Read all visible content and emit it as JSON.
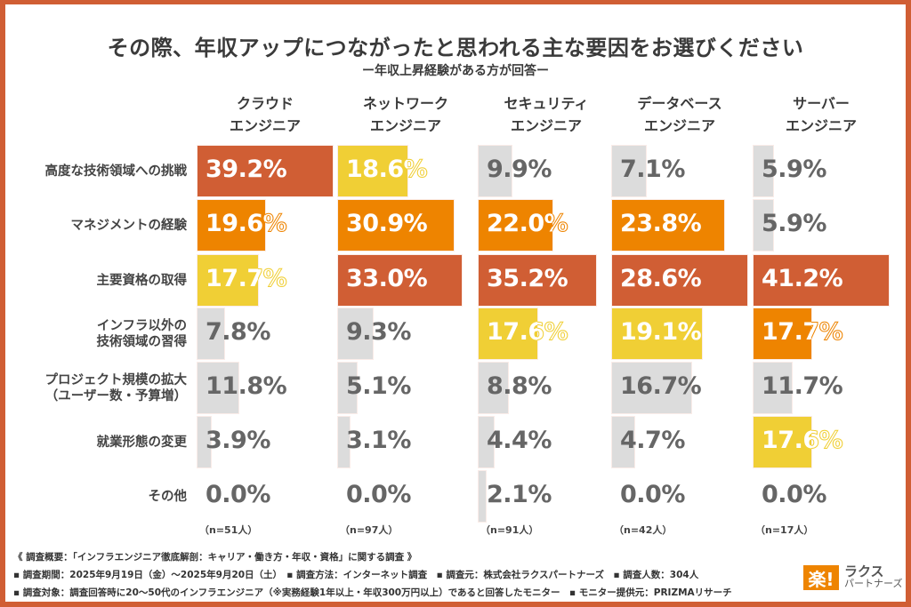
{
  "title": "その際、年収アップにつながったと思われる主な要因をお選びください",
  "subtitle": "ー年収上昇経験がある方が回答ー",
  "colors": {
    "top": "#D05E34",
    "second": "#EE8400",
    "third": "#F0CF35",
    "other": "#DCDCDC",
    "border": "#D05E34",
    "text_dark": "#666666"
  },
  "chart_data": {
    "type": "bar",
    "orientation": "horizontal-small-multiples",
    "title": "その際、年収アップにつながったと思われる主な要因をお選びください",
    "subtitle": "ー年収上昇経験がある方が回答ー",
    "unit": "%",
    "categories": [
      "高度な技術領域への挑戦",
      "マネジメントの経験",
      "主要資格の取得",
      "インフラ以外の\n技術領域の習得",
      "プロジェクト規模の拡大\n（ユーザー数・予算増）",
      "就業形態の変更",
      "その他"
    ],
    "series": [
      {
        "name": "クラウド\nエンジニア",
        "n": "（n=51人）",
        "values": [
          39.2,
          19.6,
          17.7,
          7.8,
          11.8,
          3.9,
          0.0
        ],
        "ranks": [
          1,
          2,
          3,
          0,
          0,
          0,
          0
        ]
      },
      {
        "name": "ネットワーク\nエンジニア",
        "n": "（n=97人）",
        "values": [
          18.6,
          30.9,
          33.0,
          9.3,
          5.1,
          3.1,
          0.0
        ],
        "ranks": [
          3,
          2,
          1,
          0,
          0,
          0,
          0
        ]
      },
      {
        "name": "セキュリティ\nエンジニア",
        "n": "（n=91人）",
        "values": [
          9.9,
          22.0,
          35.2,
          17.6,
          8.8,
          4.4,
          2.1
        ],
        "ranks": [
          0,
          2,
          1,
          3,
          0,
          0,
          0
        ]
      },
      {
        "name": "データベース\nエンジニア",
        "n": "（n=42人）",
        "values": [
          7.1,
          23.8,
          28.6,
          19.1,
          16.7,
          4.7,
          0.0
        ],
        "ranks": [
          0,
          2,
          1,
          3,
          0,
          0,
          0
        ]
      },
      {
        "name": "サーバー\nエンジニア",
        "n": "（n=17人）",
        "values": [
          5.9,
          5.9,
          41.2,
          17.7,
          11.7,
          17.6,
          0.0
        ],
        "ranks": [
          0,
          0,
          1,
          2,
          0,
          3,
          0
        ]
      }
    ],
    "legend": "none",
    "grid": false
  },
  "notes": [
    "《 調査概要：「インフラエンジニア徹底解剖：キャリア・働き方・年収・資格」に関する調査 》",
    "▪ 調査期間：2025年9月19日（金）～2025年9月20日（土）　▪ 調査方法：インターネット調査　▪ 調査元：株式会社ラクスパートナーズ　▪ 調査人数：304人",
    "▪ 調査対象：調査回答時に20～50代のインフラエンジニア（※実務経験1年以上・年収300万円以上）であると回答したモニター　▪ モニター提供元：PRIZMAリサーチ"
  ],
  "logo": {
    "mark": "楽!",
    "line1": "ラクス",
    "line2": "パートナーズ"
  }
}
